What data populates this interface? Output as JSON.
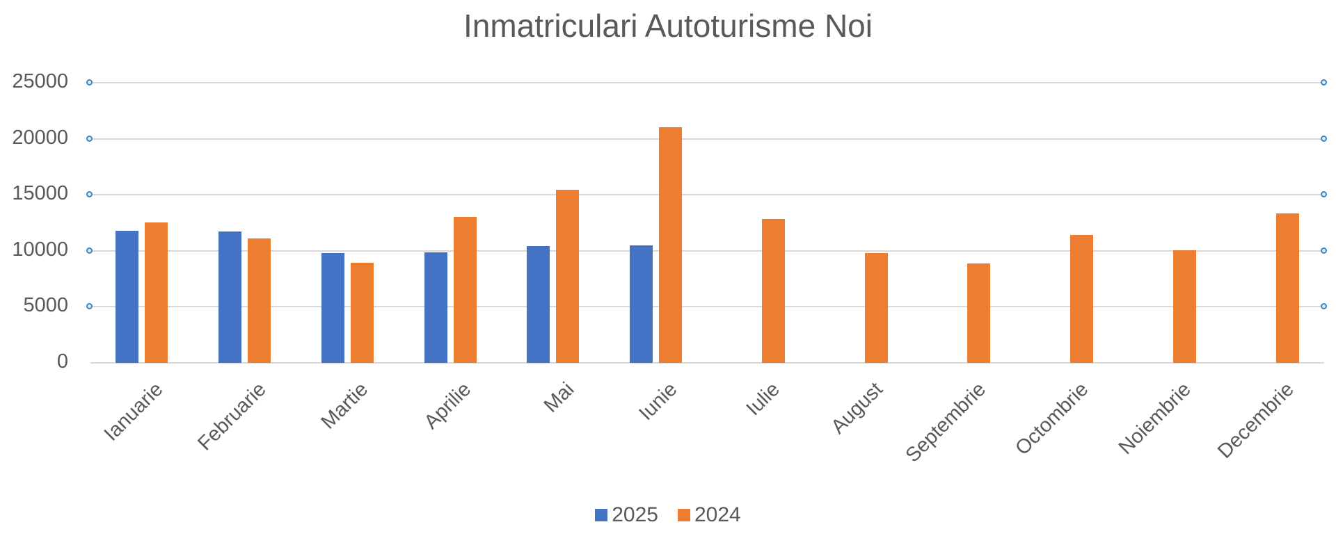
{
  "chart_data": {
    "type": "bar",
    "title": "Inmatriculari Autoturisme Noi",
    "xlabel": "",
    "ylabel": "",
    "ylim": [
      0,
      25000
    ],
    "yticks": [
      0,
      5000,
      10000,
      15000,
      20000,
      25000
    ],
    "grid": true,
    "legend_position": "bottom",
    "categories": [
      "Ianuarie",
      "Februarie",
      "Martie",
      "Aprilie",
      "Mai",
      "Iunie",
      "Iulie",
      "August",
      "Septembrie",
      "Octombrie",
      "Noiembrie",
      "Decembrie"
    ],
    "series": [
      {
        "name": "2025",
        "color": "#4472c4",
        "values": [
          11760,
          11720,
          9810,
          9880,
          10420,
          10480,
          null,
          null,
          null,
          null,
          null,
          null
        ]
      },
      {
        "name": "2024",
        "color": "#ed7d31",
        "values": [
          12540,
          11120,
          8910,
          13040,
          15420,
          21040,
          12870,
          9830,
          8860,
          11410,
          10060,
          13350
        ]
      }
    ]
  }
}
